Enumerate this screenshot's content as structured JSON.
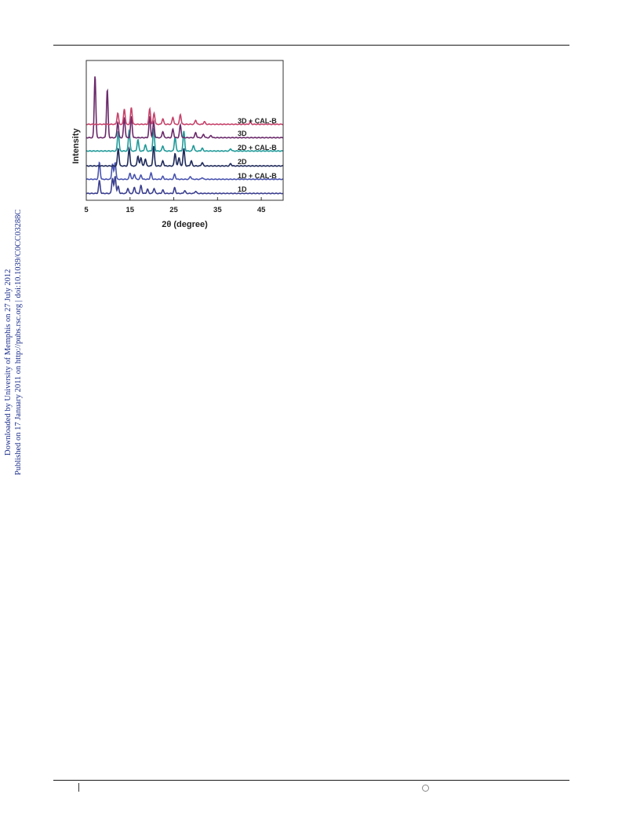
{
  "sidebar": {
    "line1": "Downloaded by University of Memphis on 27 July 2012",
    "line2": "Published on 17 January 2011 on http://pubs.rsc.org | doi:10.1039/C0CC03288C"
  },
  "chart_data": {
    "type": "line",
    "xlabel": "2θ (degree)",
    "ylabel": "Intensity",
    "xlim": [
      5,
      50
    ],
    "xticks": [
      5,
      15,
      25,
      35,
      45
    ],
    "grid": false,
    "series": [
      {
        "name": "1D",
        "color": "#3b3f8f",
        "peaks": [
          [
            8.0,
            0.45
          ],
          [
            11.0,
            0.55
          ],
          [
            11.6,
            0.6
          ],
          [
            12.3,
            0.25
          ],
          [
            14.5,
            0.18
          ],
          [
            16.0,
            0.22
          ],
          [
            17.5,
            0.28
          ],
          [
            19.0,
            0.15
          ],
          [
            20.5,
            0.18
          ],
          [
            22.5,
            0.12
          ],
          [
            25.2,
            0.2
          ],
          [
            27.5,
            0.1
          ],
          [
            30.0,
            0.08
          ]
        ]
      },
      {
        "name": "1D + CAL-B",
        "color": "#4a55b0",
        "peaks": [
          [
            8.0,
            0.6
          ],
          [
            11.0,
            0.55
          ],
          [
            11.6,
            0.6
          ],
          [
            15.0,
            0.22
          ],
          [
            16.0,
            0.18
          ],
          [
            17.5,
            0.15
          ],
          [
            19.8,
            0.22
          ],
          [
            22.5,
            0.1
          ],
          [
            25.2,
            0.18
          ],
          [
            28.8,
            0.1
          ],
          [
            31.5,
            0.06
          ]
        ]
      },
      {
        "name": "2D",
        "color": "#1e2a5a",
        "peaks": [
          [
            12.3,
            0.62
          ],
          [
            14.8,
            0.62
          ],
          [
            16.8,
            0.35
          ],
          [
            17.5,
            0.3
          ],
          [
            18.5,
            0.25
          ],
          [
            20.4,
            0.7
          ],
          [
            22.5,
            0.18
          ],
          [
            25.3,
            0.45
          ],
          [
            26.2,
            0.3
          ],
          [
            27.3,
            0.62
          ],
          [
            29.0,
            0.18
          ],
          [
            31.5,
            0.12
          ],
          [
            38.0,
            0.08
          ]
        ]
      },
      {
        "name": "2D + CAL-B",
        "color": "#1f9a99",
        "peaks": [
          [
            12.3,
            0.7
          ],
          [
            14.8,
            0.72
          ],
          [
            16.8,
            0.4
          ],
          [
            18.5,
            0.22
          ],
          [
            20.4,
            0.8
          ],
          [
            22.5,
            0.18
          ],
          [
            25.3,
            0.5
          ],
          [
            27.3,
            0.7
          ],
          [
            29.5,
            0.2
          ],
          [
            31.5,
            0.1
          ],
          [
            38.0,
            0.08
          ]
        ]
      },
      {
        "name": "3D",
        "color": "#6a2a6a",
        "peaks": [
          [
            7.0,
            2.2
          ],
          [
            9.8,
            1.7
          ],
          [
            12.2,
            0.55
          ],
          [
            13.7,
            0.72
          ],
          [
            15.3,
            0.75
          ],
          [
            19.5,
            0.75
          ],
          [
            20.4,
            0.55
          ],
          [
            22.5,
            0.22
          ],
          [
            24.8,
            0.3
          ],
          [
            26.5,
            0.45
          ],
          [
            30.0,
            0.18
          ],
          [
            31.8,
            0.12
          ],
          [
            33.5,
            0.08
          ]
        ]
      },
      {
        "name": "3D + CAL-B",
        "color": "#c7436b",
        "peaks": [
          [
            12.2,
            0.4
          ],
          [
            13.7,
            0.55
          ],
          [
            15.3,
            0.6
          ],
          [
            19.5,
            0.55
          ],
          [
            20.5,
            0.4
          ],
          [
            22.5,
            0.2
          ],
          [
            24.8,
            0.25
          ],
          [
            26.5,
            0.35
          ],
          [
            30.0,
            0.15
          ],
          [
            32.0,
            0.1
          ],
          [
            42.5,
            0.08
          ]
        ]
      }
    ]
  }
}
